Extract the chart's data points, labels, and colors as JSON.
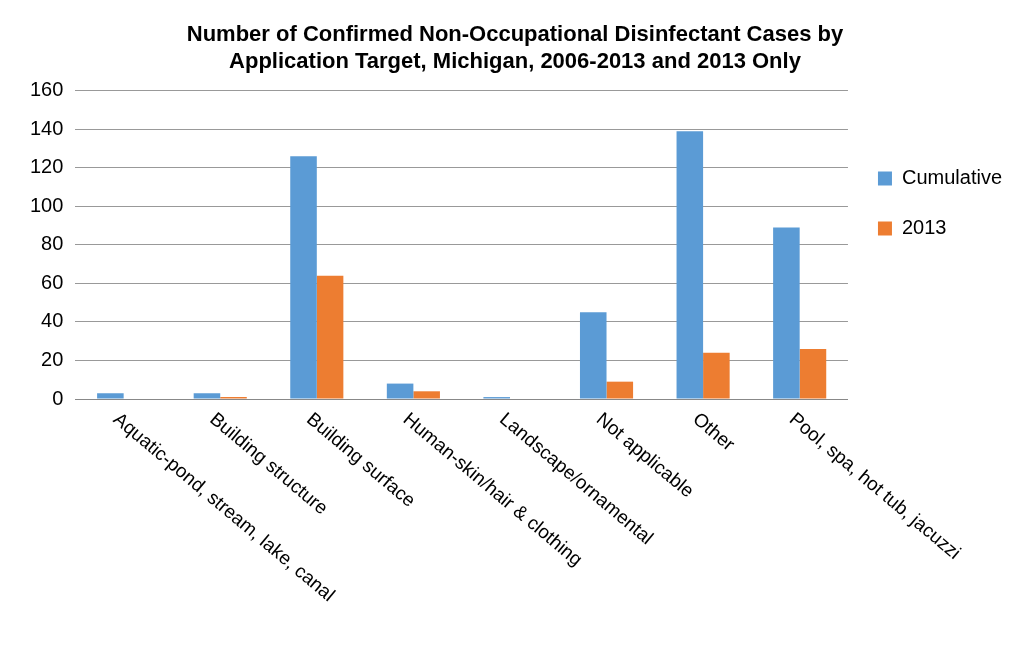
{
  "chart_data": {
    "type": "bar",
    "title": "Number of Confirmed Non-Occupational Disinfectant Cases by Application Target, Michigan, 2006-2013 and 2013 Only",
    "categories": [
      "Aquatic-pond, stream, lake, canal",
      "Building structure",
      "Building surface",
      "Human-skin/hair & clothing",
      "Landscape/ornamental",
      "Not applicable",
      "Other",
      "Pool, spa, hot tub, jacuzzi"
    ],
    "series": [
      {
        "name": "Cumulative",
        "color": "#5b9bd5",
        "values": [
          3,
          3,
          126,
          8,
          1,
          45,
          139,
          89
        ]
      },
      {
        "name": "2013",
        "color": "#ed7d31",
        "values": [
          0,
          1,
          64,
          4,
          0,
          9,
          24,
          26
        ]
      }
    ],
    "ylim": [
      0,
      160
    ],
    "yticks": [
      0,
      20,
      40,
      60,
      80,
      100,
      120,
      140,
      160
    ],
    "grid": "y",
    "legend": "right"
  }
}
